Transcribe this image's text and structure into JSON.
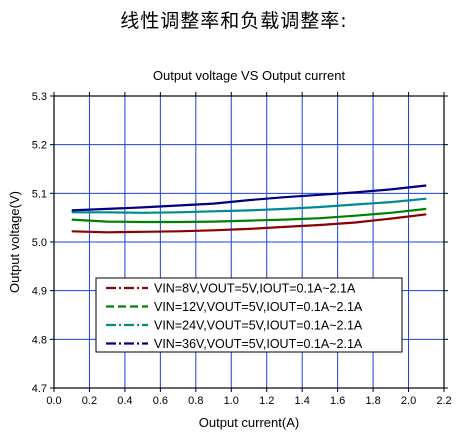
{
  "heading": "线性调整率和负载调整率:",
  "chart_data": {
    "type": "line",
    "title": "Output voltage VS Output current",
    "xlabel": "Output current(A)",
    "ylabel": "Output voltage(V)",
    "xlim": [
      0.0,
      2.2
    ],
    "ylim": [
      4.7,
      5.3
    ],
    "xticks": [
      "0.0",
      "0.2",
      "0.4",
      "0.6",
      "0.8",
      "1.0",
      "1.2",
      "1.4",
      "1.6",
      "1.8",
      "2.0",
      "2.2"
    ],
    "yticks": [
      "4.7",
      "4.8",
      "4.9",
      "5.0",
      "5.1",
      "5.2",
      "5.3"
    ],
    "grid": true,
    "legend_position": "lower-center",
    "x": [
      0.1,
      0.3,
      0.5,
      0.7,
      0.9,
      1.1,
      1.3,
      1.5,
      1.7,
      1.9,
      2.1
    ],
    "series": [
      {
        "name": "VIN=8V,VOUT=5V,IOUT=0.1A~2.1A",
        "color": "#8b0000",
        "dash": "dashdot",
        "values": [
          5.022,
          5.02,
          5.021,
          5.022,
          5.024,
          5.027,
          5.031,
          5.035,
          5.04,
          5.048,
          5.057
        ]
      },
      {
        "name": "VIN=12V,VOUT=5V,IOUT=0.1A~2.1A",
        "color": "#008000",
        "dash": "dashed",
        "values": [
          5.046,
          5.042,
          5.041,
          5.041,
          5.042,
          5.044,
          5.046,
          5.049,
          5.054,
          5.06,
          5.068
        ]
      },
      {
        "name": "VIN=24V,VOUT=5V,IOUT=0.1A~2.1A",
        "color": "#008b8b",
        "dash": "dashdot",
        "values": [
          5.061,
          5.061,
          5.06,
          5.061,
          5.063,
          5.065,
          5.068,
          5.072,
          5.077,
          5.082,
          5.089
        ]
      },
      {
        "name": "VIN=36V,VOUT=5V,IOUT=0.1A~2.1A",
        "color": "#000080",
        "dash": "dashdot",
        "values": [
          5.065,
          5.068,
          5.071,
          5.075,
          5.079,
          5.086,
          5.092,
          5.097,
          5.102,
          5.108,
          5.116
        ]
      }
    ]
  }
}
